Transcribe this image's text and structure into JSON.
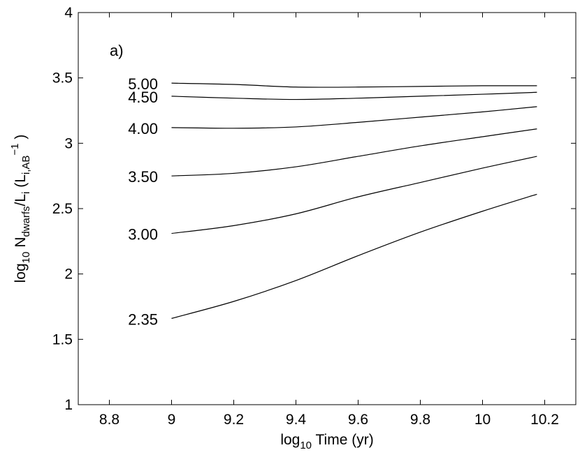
{
  "chart_data": {
    "type": "line",
    "panel_label": "a)",
    "xlabel": {
      "prefix": "log",
      "sub": "10",
      "rest": " Time (yr)"
    },
    "ylabel": {
      "p1": "log",
      "s1": "10",
      "p2": " N",
      "s2": "dwarfs",
      "p3": "/L",
      "s3": "i",
      "p4": " (L",
      "s4": "i,AB",
      "sup": "−1",
      "p5": " )"
    },
    "xlim": [
      8.7,
      10.3
    ],
    "ylim": [
      1,
      4
    ],
    "xticks": [
      8.8,
      9.0,
      9.2,
      9.4,
      9.6,
      9.8,
      10.0,
      10.2
    ],
    "xtick_labels": [
      "8.8",
      "9",
      "9.2",
      "9.4",
      "9.6",
      "9.8",
      "10",
      "10.2"
    ],
    "yticks": [
      1,
      1.5,
      2,
      2.5,
      3,
      3.5,
      4
    ],
    "ytick_labels": [
      "1",
      "1.5",
      "2",
      "2.5",
      "3",
      "3.5",
      "4"
    ],
    "series": [
      {
        "name": "5.00",
        "x": [
          9.0,
          9.2,
          9.4,
          9.6,
          9.8,
          10.0,
          10.175
        ],
        "y": [
          3.46,
          3.45,
          3.43,
          3.43,
          3.435,
          3.44,
          3.44
        ]
      },
      {
        "name": "4.50",
        "x": [
          9.0,
          9.2,
          9.4,
          9.6,
          9.8,
          10.0,
          10.175
        ],
        "y": [
          3.36,
          3.345,
          3.335,
          3.345,
          3.36,
          3.375,
          3.39
        ]
      },
      {
        "name": "4.00",
        "x": [
          9.0,
          9.2,
          9.4,
          9.6,
          9.8,
          10.0,
          10.175
        ],
        "y": [
          3.12,
          3.115,
          3.125,
          3.16,
          3.2,
          3.24,
          3.28
        ]
      },
      {
        "name": "3.50",
        "x": [
          9.0,
          9.2,
          9.4,
          9.6,
          9.8,
          10.0,
          10.175
        ],
        "y": [
          2.75,
          2.77,
          2.82,
          2.9,
          2.98,
          3.05,
          3.11
        ]
      },
      {
        "name": "3.00",
        "x": [
          9.0,
          9.2,
          9.4,
          9.6,
          9.8,
          10.0,
          10.175
        ],
        "y": [
          2.31,
          2.37,
          2.46,
          2.59,
          2.7,
          2.81,
          2.9
        ]
      },
      {
        "name": "2.35",
        "x": [
          9.0,
          9.2,
          9.4,
          9.6,
          9.8,
          10.0,
          10.175
        ],
        "y": [
          1.66,
          1.79,
          1.95,
          2.14,
          2.32,
          2.48,
          2.61
        ]
      }
    ],
    "series_label_x": 8.86,
    "grid": false,
    "color": "#000000"
  }
}
